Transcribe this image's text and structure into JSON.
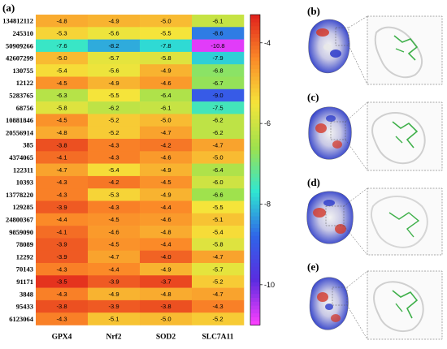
{
  "panels": {
    "a": "(a)",
    "b": "(b)",
    "c": "(c)",
    "d": "(d)",
    "e": "(e)"
  },
  "chart_data": {
    "type": "heatmap",
    "title": "",
    "xlabel": "",
    "ylabel": "",
    "columns": [
      "GPX4",
      "Nrf2",
      "SOD2",
      "SLC7A11"
    ],
    "rows": [
      "134812112",
      "245310",
      "50909266",
      "42607299",
      "130755",
      "12122",
      "5283765",
      "68756",
      "10881846",
      "20556914",
      "385",
      "4374065",
      "122311",
      "10393",
      "13778220",
      "129285",
      "24800367",
      "9859090",
      "78089",
      "12292",
      "70143",
      "91171",
      "3848",
      "95433",
      "6123064"
    ],
    "values": [
      [
        -4.8,
        -4.9,
        -5.0,
        -6.1
      ],
      [
        -5.3,
        -5.6,
        -5.5,
        -8.6
      ],
      [
        -7.6,
        -8.2,
        -7.8,
        -10.8
      ],
      [
        -5.0,
        -5.7,
        -5.8,
        -7.9
      ],
      [
        -5.4,
        -5.6,
        -4.9,
        -6.8
      ],
      [
        -4.5,
        -4.9,
        -4.6,
        -6.7
      ],
      [
        -6.3,
        -5.5,
        -6.4,
        -9.0
      ],
      [
        -5.8,
        -6.2,
        -6.1,
        -7.5
      ],
      [
        -4.5,
        -5.2,
        -5.0,
        -6.2
      ],
      [
        -4.8,
        -5.2,
        -4.7,
        -6.2
      ],
      [
        -3.8,
        -4.3,
        -4.2,
        -4.7
      ],
      [
        -4.1,
        -4.3,
        -4.6,
        -5.0
      ],
      [
        -4.7,
        -5.4,
        -4.9,
        -6.4
      ],
      [
        -4.3,
        -4.2,
        -4.5,
        -6.0
      ],
      [
        -4.3,
        -5.3,
        -4.9,
        -6.6
      ],
      [
        -3.9,
        -4.3,
        -4.4,
        -5.5
      ],
      [
        -4.4,
        -4.5,
        -4.6,
        -5.1
      ],
      [
        -4.1,
        -4.6,
        -4.8,
        -5.4
      ],
      [
        -3.9,
        -4.5,
        -4.4,
        -5.8
      ],
      [
        -3.9,
        -4.7,
        -4.0,
        -4.7
      ],
      [
        -4.3,
        -4.4,
        -4.9,
        -5.7
      ],
      [
        -3.5,
        -3.9,
        -3.7,
        -5.2
      ],
      [
        -4.3,
        -4.9,
        -4.8,
        -4.7
      ],
      [
        -3.8,
        -3.9,
        -3.8,
        -4.3
      ],
      [
        -4.3,
        -5.1,
        -5.0,
        -5.2
      ]
    ],
    "colorbar": {
      "min": -11.0,
      "max": -3.3,
      "ticks": [
        -4,
        -6,
        -8,
        -10
      ],
      "colors": [
        "#e0201c",
        "#fb8a28",
        "#f5e43a",
        "#9fe24d",
        "#2fe6d2",
        "#2f65e8",
        "#5b2ce0",
        "#ff3fff"
      ]
    }
  }
}
